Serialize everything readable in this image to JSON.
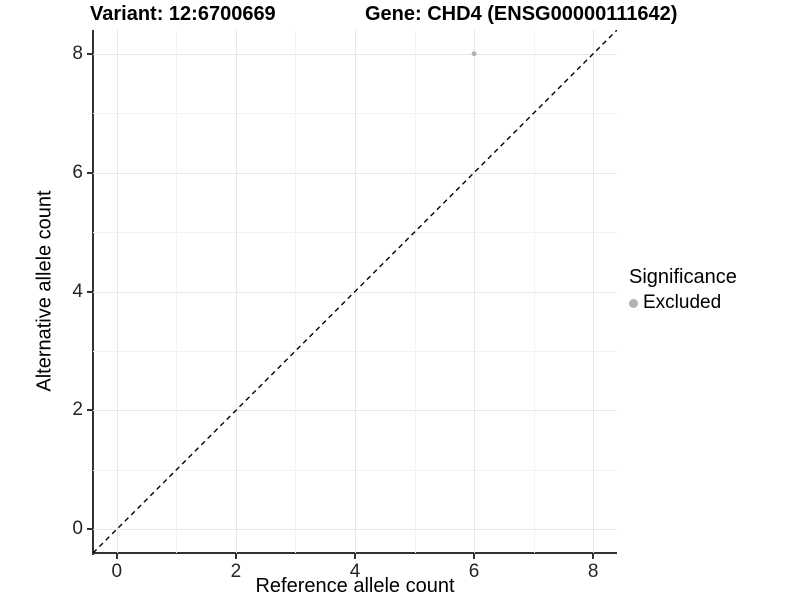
{
  "titles": {
    "variant": "Variant: 12:6700669",
    "gene": "Gene: CHD4 (ENSG00000111642)"
  },
  "legend": {
    "title": "Significance",
    "position": "right",
    "items": [
      {
        "label": "Excluded",
        "marker": "circle",
        "color": "#b3b3b3"
      }
    ]
  },
  "chart_data": {
    "type": "scatter",
    "title": "Variant: 12:6700669 — Gene: CHD4 (ENSG00000111642)",
    "xlabel": "Reference allele count",
    "ylabel": "Alternative allele count",
    "xlim": [
      -0.4,
      8.4
    ],
    "ylim": [
      -0.4,
      8.4
    ],
    "xticks": [
      0,
      2,
      4,
      6,
      8
    ],
    "yticks": [
      0,
      2,
      4,
      6,
      8
    ],
    "x_minor_ticks": [
      1,
      3,
      5,
      7
    ],
    "y_minor_ticks": [
      1,
      3,
      5,
      7
    ],
    "grid": "major+minor",
    "legend_position": "right",
    "series": [
      {
        "name": "Excluded",
        "color": "#b3b3b3",
        "point_radius": 2.5,
        "points": [
          {
            "x": 6,
            "y": 8
          }
        ]
      }
    ],
    "reference_line": {
      "kind": "identity",
      "slope": 1,
      "intercept": 0,
      "style": "dashed",
      "color": "#000000"
    }
  },
  "style": {
    "axis_color": "#333333",
    "grid_major_color": "#e7e7e7",
    "grid_minor_color": "#f2f2f2",
    "text_color": "#262626",
    "background": "#ffffff"
  }
}
